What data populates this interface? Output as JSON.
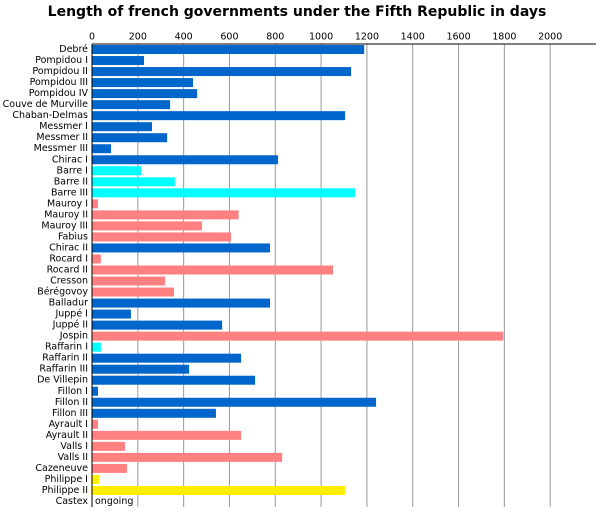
{
  "chart_data": {
    "type": "hbar",
    "title": "Length of french governments under the Fifth Republic in days",
    "categories": [
      "Debré",
      "Pompidou I",
      "Pompidou II",
      "Pompidou III",
      "Pompidou IV",
      "Couve de Murville",
      "Chaban-Delmas",
      "Messmer I",
      "Messmer II",
      "Messmer III",
      "Chirac I",
      "Barre I",
      "Barre II",
      "Barre III",
      "Mauroy I",
      "Mauroy II",
      "Mauroy III",
      "Fabius",
      "Chirac II",
      "Rocard I",
      "Rocard II",
      "Cresson",
      "Bérégovoy",
      "Balladur",
      "Juppé I",
      "Juppé II",
      "Jospin",
      "Raffarin I",
      "Raffarin II",
      "Raffarin III",
      "De Villepin",
      "Fillon I",
      "Fillon II",
      "Fillon III",
      "Ayrault I",
      "Ayrault II",
      "Valls I",
      "Valls II",
      "Cazeneuve",
      "Philippe I",
      "Philippe II",
      "Castex"
    ],
    "values": [
      1188,
      227,
      1131,
      441,
      459,
      341,
      1105,
      262,
      328,
      83,
      812,
      214,
      362,
      1148,
      26,
      640,
      480,
      607,
      777,
      39,
      1052,
      319,
      358,
      777,
      170,
      568,
      1795,
      39,
      651,
      424,
      712,
      26,
      1240,
      541,
      26,
      651,
      144,
      830,
      153,
      31,
      1105,
      null
    ],
    "value_labels": [
      null,
      null,
      null,
      null,
      null,
      null,
      null,
      null,
      null,
      null,
      null,
      null,
      null,
      null,
      null,
      null,
      null,
      null,
      null,
      null,
      null,
      null,
      null,
      null,
      null,
      null,
      null,
      null,
      null,
      null,
      null,
      null,
      null,
      null,
      null,
      null,
      null,
      null,
      null,
      null,
      null,
      "ongoing"
    ],
    "colors": [
      "#0066cc",
      "#0066cc",
      "#0066cc",
      "#0066cc",
      "#0066cc",
      "#0066cc",
      "#0066cc",
      "#0066cc",
      "#0066cc",
      "#0066cc",
      "#0066cc",
      "#00ffff",
      "#00ffff",
      "#00ffff",
      "#ff8080",
      "#ff8080",
      "#ff8080",
      "#ff8080",
      "#0066cc",
      "#ff8080",
      "#ff8080",
      "#ff8080",
      "#ff8080",
      "#0066cc",
      "#0066cc",
      "#0066cc",
      "#ff8080",
      "#00ffff",
      "#0066cc",
      "#0066cc",
      "#0066cc",
      "#0066cc",
      "#0066cc",
      "#0066cc",
      "#ff8080",
      "#ff8080",
      "#ff8080",
      "#ff8080",
      "#ff8080",
      "#ffee00",
      "#ffee00",
      "#ffee00"
    ],
    "xlim": [
      0,
      2200
    ],
    "xticks": [
      0,
      200,
      400,
      600,
      800,
      1000,
      1200,
      1400,
      1600,
      1800,
      2000
    ],
    "grid": true
  }
}
